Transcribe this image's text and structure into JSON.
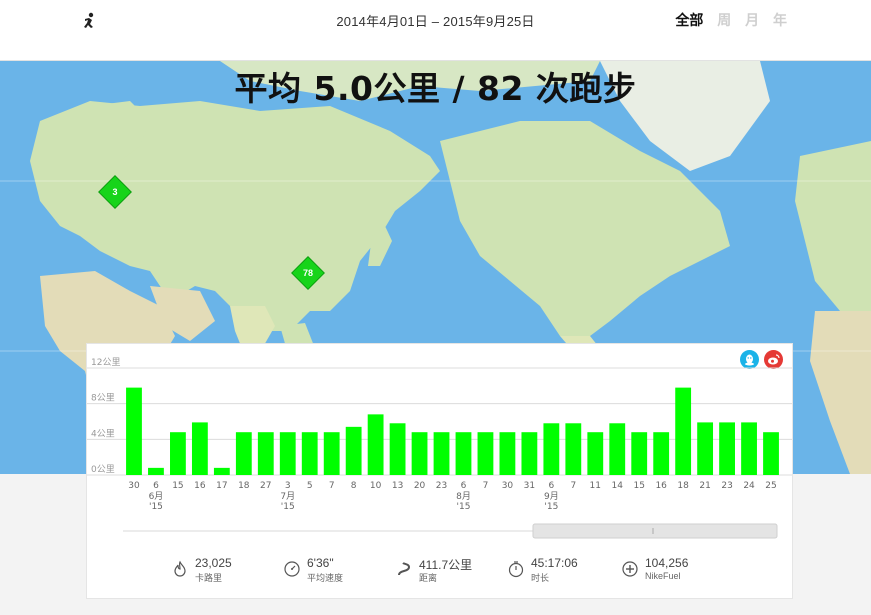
{
  "header": {
    "date_range": "2014年4月01日 – 2015年9月25日",
    "period_tabs": [
      {
        "label": "全部",
        "active": true
      },
      {
        "label": "周",
        "active": false
      },
      {
        "label": "月",
        "active": false
      },
      {
        "label": "年",
        "active": false
      }
    ]
  },
  "map": {
    "headline": "平均 5.0公里 / 82 次跑步",
    "markers": [
      {
        "label": "3"
      },
      {
        "label": "78"
      }
    ],
    "colors": {
      "ocean": "#6ab4e8",
      "land": "#cfe3b3",
      "marker": "#17d41a"
    }
  },
  "chart_data": {
    "type": "bar",
    "ylabel_unit": "公里",
    "y_ticks": [
      "12公里",
      "8公里",
      "4公里",
      "0公里"
    ],
    "ylim": [
      0,
      12
    ],
    "grid": true,
    "bar_color": "#00ff00",
    "categories": [
      "30",
      "6",
      "15",
      "16",
      "17",
      "18",
      "27",
      "3",
      "5",
      "7",
      "8",
      "10",
      "13",
      "20",
      "23",
      "6",
      "7",
      "30",
      "31",
      "6",
      "7",
      "11",
      "14",
      "15",
      "16",
      "18",
      "21",
      "23",
      "24",
      "25"
    ],
    "month_labels": [
      {
        "index": 1,
        "month": "6月",
        "year": "'15"
      },
      {
        "index": 7,
        "month": "7月",
        "year": "'15"
      },
      {
        "index": 15,
        "month": "8月",
        "year": "'15"
      },
      {
        "index": 19,
        "month": "9月",
        "year": "'15"
      }
    ],
    "values": [
      9.8,
      0.8,
      4.8,
      5.9,
      0.8,
      4.8,
      4.8,
      4.8,
      4.8,
      4.8,
      5.4,
      6.8,
      5.8,
      4.8,
      4.8,
      4.8,
      4.8,
      4.8,
      4.8,
      5.8,
      5.8,
      4.8,
      5.8,
      4.8,
      4.8,
      9.8,
      5.9,
      5.9,
      5.9,
      4.8
    ]
  },
  "stats": [
    {
      "icon": "flame-icon",
      "value": "23,025",
      "label": "卡路里"
    },
    {
      "icon": "speedometer-icon",
      "value": "6'36\"",
      "label": "平均速度"
    },
    {
      "icon": "route-icon",
      "value": "411.7公里",
      "label": "距离"
    },
    {
      "icon": "stopwatch-icon",
      "value": "45:17:06",
      "label": "时长"
    },
    {
      "icon": "plus-circle-icon",
      "value": "104,256",
      "label": "NikeFuel"
    }
  ],
  "share": [
    {
      "icon": "qq-icon"
    },
    {
      "icon": "weibo-icon"
    }
  ]
}
